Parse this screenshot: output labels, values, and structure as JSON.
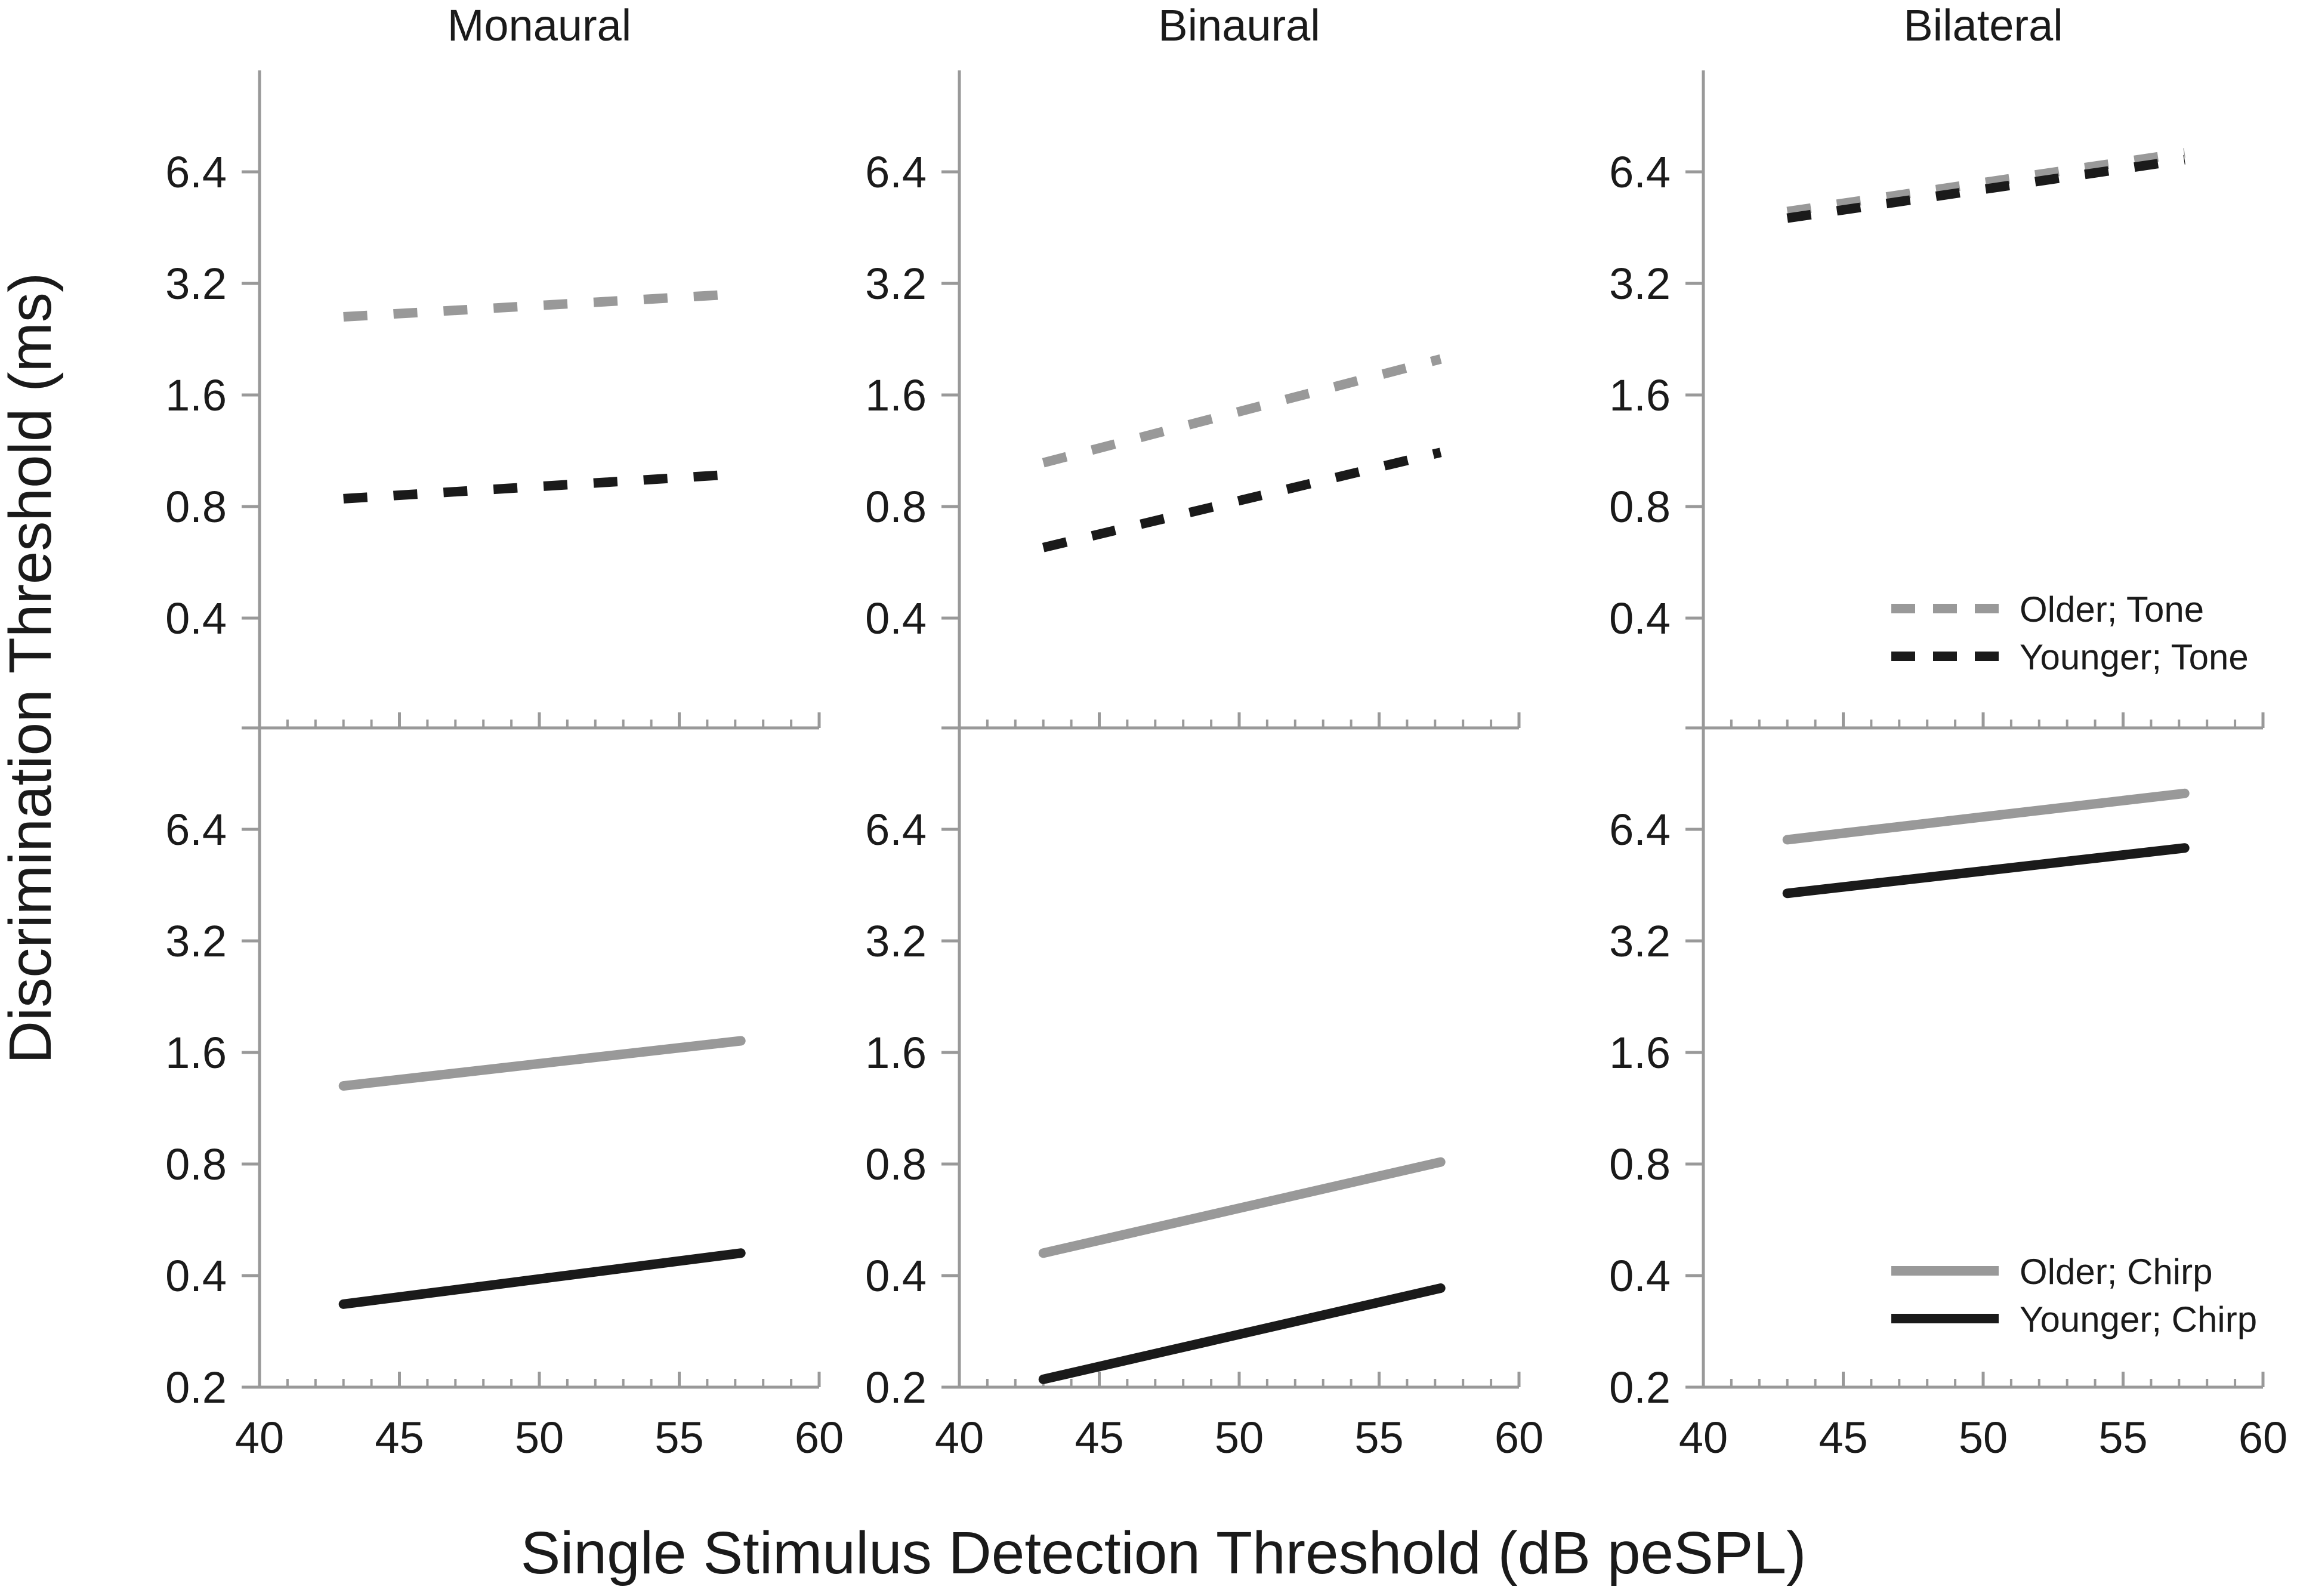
{
  "figure": {
    "y_axis_label": "Discrimination Threshold (ms)",
    "x_axis_label": "Single Stimulus Detection Threshold (dB peSPL)",
    "column_titles": [
      "Monaural",
      "Binaural",
      "Bilateral"
    ],
    "colors": {
      "older": "#999999",
      "younger": "#1a1a1a",
      "axis": "#999999",
      "text": "#1a1a1a"
    }
  },
  "chart_data": [
    {
      "type": "line",
      "panel": "top-monaural",
      "title": "Monaural",
      "xlim": [
        40,
        60
      ],
      "x_ticks": [
        40,
        45,
        50,
        55,
        60
      ],
      "x_ticks_labeled": false,
      "y_scale": "log2",
      "ylim": [
        0.2,
        12.8
      ],
      "y_ticks": [
        0.4,
        0.8,
        1.6,
        3.2,
        6.4
      ],
      "series": [
        {
          "name": "Older; Tone",
          "style": "dashed",
          "color": "#999999",
          "x": [
            43,
            57.2
          ],
          "y": [
            2.6,
            3.0
          ]
        },
        {
          "name": "Younger; Tone",
          "style": "dashed",
          "color": "#1a1a1a",
          "x": [
            43,
            57.2
          ],
          "y": [
            0.84,
            0.98
          ]
        }
      ]
    },
    {
      "type": "line",
      "panel": "top-binaural",
      "title": "Binaural",
      "xlim": [
        40,
        60
      ],
      "x_ticks": [
        40,
        45,
        50,
        55,
        60
      ],
      "x_ticks_labeled": false,
      "y_scale": "log2",
      "ylim": [
        0.2,
        12.8
      ],
      "y_ticks": [
        0.4,
        0.8,
        1.6,
        3.2,
        6.4
      ],
      "series": [
        {
          "name": "Older; Tone",
          "style": "dashed",
          "color": "#999999",
          "x": [
            43,
            57.2
          ],
          "y": [
            1.05,
            2.0
          ]
        },
        {
          "name": "Younger; Tone",
          "style": "dashed",
          "color": "#1a1a1a",
          "x": [
            43,
            57.2
          ],
          "y": [
            0.62,
            1.12
          ]
        }
      ]
    },
    {
      "type": "line",
      "panel": "top-bilateral",
      "title": "Bilateral",
      "xlim": [
        40,
        60
      ],
      "x_ticks": [
        40,
        45,
        50,
        55,
        60
      ],
      "x_ticks_labeled": false,
      "y_scale": "log2",
      "ylim": [
        0.2,
        12.8
      ],
      "y_ticks": [
        0.4,
        0.8,
        1.6,
        3.2,
        6.4
      ],
      "legend": "bottom-right",
      "series": [
        {
          "name": "Older; Tone",
          "style": "dashed",
          "color": "#999999",
          "x": [
            43,
            57.2
          ],
          "y": [
            5.0,
            7.2
          ]
        },
        {
          "name": "Younger; Tone",
          "style": "dashed",
          "color": "#1a1a1a",
          "x": [
            43,
            57.2
          ],
          "y": [
            4.8,
            6.9
          ]
        }
      ]
    },
    {
      "type": "line",
      "panel": "bottom-monaural",
      "xlim": [
        40,
        60
      ],
      "x_ticks": [
        40,
        45,
        50,
        55,
        60
      ],
      "x_ticks_labeled": true,
      "y_scale": "log2",
      "ylim": [
        0.2,
        12.8
      ],
      "y_ticks": [
        0.2,
        0.4,
        0.8,
        1.6,
        3.2,
        6.4
      ],
      "series": [
        {
          "name": "Older; Chirp",
          "style": "solid",
          "color": "#999999",
          "x": [
            43,
            57.2
          ],
          "y": [
            1.3,
            1.72
          ]
        },
        {
          "name": "Younger; Chirp",
          "style": "solid",
          "color": "#1a1a1a",
          "x": [
            43,
            57.2
          ],
          "y": [
            0.335,
            0.46
          ]
        }
      ]
    },
    {
      "type": "line",
      "panel": "bottom-binaural",
      "xlim": [
        40,
        60
      ],
      "x_ticks": [
        40,
        45,
        50,
        55,
        60
      ],
      "x_ticks_labeled": true,
      "y_scale": "log2",
      "ylim": [
        0.2,
        12.8
      ],
      "y_ticks": [
        0.2,
        0.4,
        0.8,
        1.6,
        3.2,
        6.4
      ],
      "series": [
        {
          "name": "Older; Chirp",
          "style": "solid",
          "color": "#999999",
          "x": [
            43,
            57.2
          ],
          "y": [
            0.46,
            0.81
          ]
        },
        {
          "name": "Younger; Chirp",
          "style": "solid",
          "color": "#1a1a1a",
          "x": [
            43,
            57.2
          ],
          "y": [
            0.21,
            0.37
          ]
        }
      ]
    },
    {
      "type": "line",
      "panel": "bottom-bilateral",
      "xlim": [
        40,
        60
      ],
      "x_ticks": [
        40,
        45,
        50,
        55,
        60
      ],
      "x_ticks_labeled": true,
      "y_scale": "log2",
      "ylim": [
        0.2,
        12.8
      ],
      "y_ticks": [
        0.2,
        0.4,
        0.8,
        1.6,
        3.2,
        6.4
      ],
      "legend": "bottom-right",
      "series": [
        {
          "name": "Older; Chirp",
          "style": "solid",
          "color": "#999999",
          "x": [
            43,
            57.2
          ],
          "y": [
            6.0,
            8.0
          ]
        },
        {
          "name": "Younger; Chirp",
          "style": "solid",
          "color": "#1a1a1a",
          "x": [
            43,
            57.2
          ],
          "y": [
            4.3,
            5.7
          ]
        }
      ]
    }
  ]
}
